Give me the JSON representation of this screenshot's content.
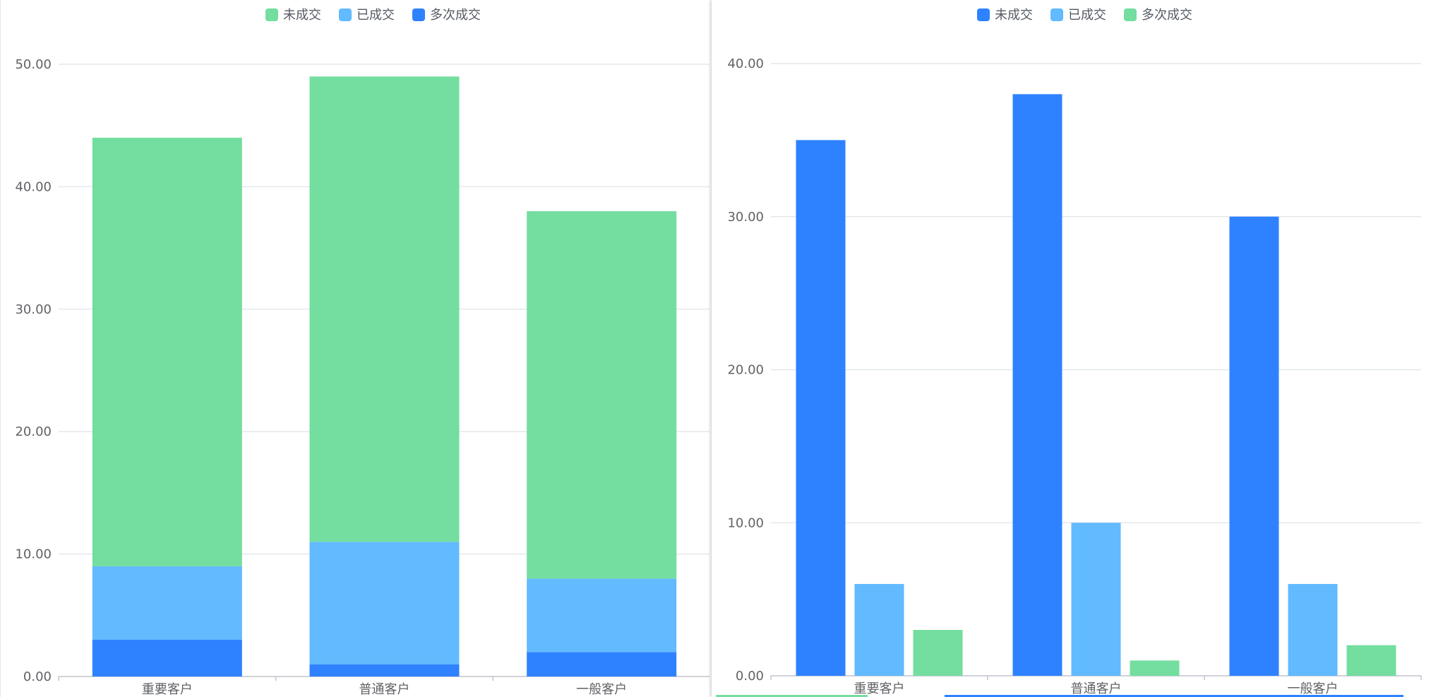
{
  "colors": {
    "green": "#73de9f",
    "light_blue": "#62baff",
    "blue": "#2f82ff",
    "grid": "#e4e7ed",
    "axis": "#c0c4cc",
    "text": "#606266"
  },
  "chart_data": [
    {
      "type": "bar",
      "stacked": true,
      "legend_position": "top-center",
      "grid": true,
      "categories": [
        "重要客户",
        "普通客户",
        "一般客户"
      ],
      "ylim": [
        0,
        50
      ],
      "yticks": [
        "0.00",
        "10.00",
        "20.00",
        "30.00",
        "40.00",
        "50.00"
      ],
      "legend": [
        "未成交",
        "已成交",
        "多次成交"
      ],
      "series": [
        {
          "name": "多次成交",
          "values": [
            3,
            1,
            2
          ],
          "color": "#2f82ff"
        },
        {
          "name": "已成交",
          "values": [
            6,
            10,
            6
          ],
          "color": "#62baff"
        },
        {
          "name": "未成交",
          "values": [
            35,
            38,
            30
          ],
          "color": "#73de9f"
        }
      ]
    },
    {
      "type": "bar",
      "stacked": false,
      "legend_position": "top-center",
      "grid": true,
      "categories": [
        "重要客户",
        "普通客户",
        "一般客户"
      ],
      "ylim": [
        0,
        40
      ],
      "yticks": [
        "0.00",
        "10.00",
        "20.00",
        "30.00",
        "40.00"
      ],
      "legend": [
        "未成交",
        "已成交",
        "多次成交"
      ],
      "series": [
        {
          "name": "未成交",
          "values": [
            35,
            38,
            30
          ],
          "color": "#2f82ff"
        },
        {
          "name": "已成交",
          "values": [
            6,
            10,
            6
          ],
          "color": "#62baff"
        },
        {
          "name": "多次成交",
          "values": [
            3,
            1,
            2
          ],
          "color": "#73de9f"
        }
      ]
    }
  ]
}
